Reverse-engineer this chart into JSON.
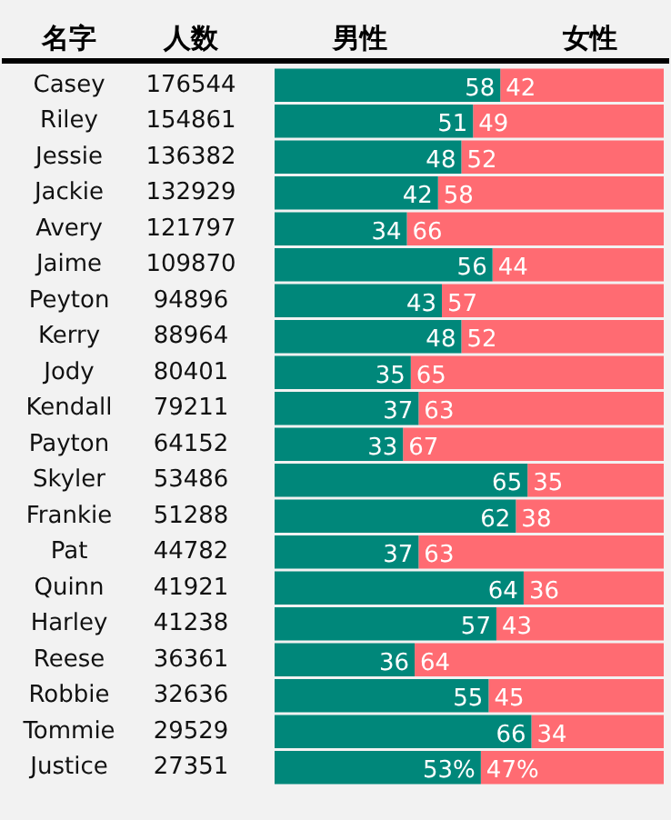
{
  "chart_data": {
    "type": "bar",
    "orientation": "horizontal",
    "stacked": true,
    "ylabel": "名字",
    "y2label": "人数",
    "categories": [
      "Casey",
      "Riley",
      "Jessie",
      "Jackie",
      "Avery",
      "Jaime",
      "Peyton",
      "Kerry",
      "Jody",
      "Kendall",
      "Payton",
      "Skyler",
      "Frankie",
      "Pat",
      "Quinn",
      "Harley",
      "Reese",
      "Robbie",
      "Tommie",
      "Justice"
    ],
    "y2_categories": [
      "176544",
      "154861",
      "136382",
      "132929",
      "121797",
      "109870",
      "94896",
      "88964",
      "80401",
      "79211",
      "64152",
      "53486",
      "51288",
      "44782",
      "41921",
      "41238",
      "36361",
      "32636",
      "29529",
      "27351"
    ],
    "series": [
      {
        "name": "男性",
        "color": "#00877a",
        "values": [
          58,
          51,
          48,
          42,
          34,
          56,
          43,
          48,
          35,
          37,
          33,
          65,
          62,
          37,
          64,
          57,
          36,
          55,
          66,
          53
        ],
        "value_labels": [
          "58",
          "51",
          "48",
          "42",
          "34",
          "56",
          "43",
          "48",
          "35",
          "37",
          "33",
          "65",
          "62",
          "37",
          "64",
          "57",
          "36",
          "55",
          "66",
          "53%"
        ]
      },
      {
        "name": "女性",
        "color": "#ff6b72",
        "values": [
          42,
          49,
          52,
          58,
          66,
          44,
          57,
          52,
          65,
          63,
          67,
          35,
          38,
          63,
          36,
          43,
          64,
          45,
          34,
          47
        ],
        "value_labels": [
          "42",
          "49",
          "52",
          "58",
          "66",
          "44",
          "57",
          "52",
          "65",
          "63",
          "67",
          "35",
          "38",
          "63",
          "36",
          "43",
          "64",
          "45",
          "34",
          "47%"
        ]
      }
    ],
    "xlim": [
      0,
      100
    ],
    "tick_labels": false,
    "legend": "top"
  }
}
